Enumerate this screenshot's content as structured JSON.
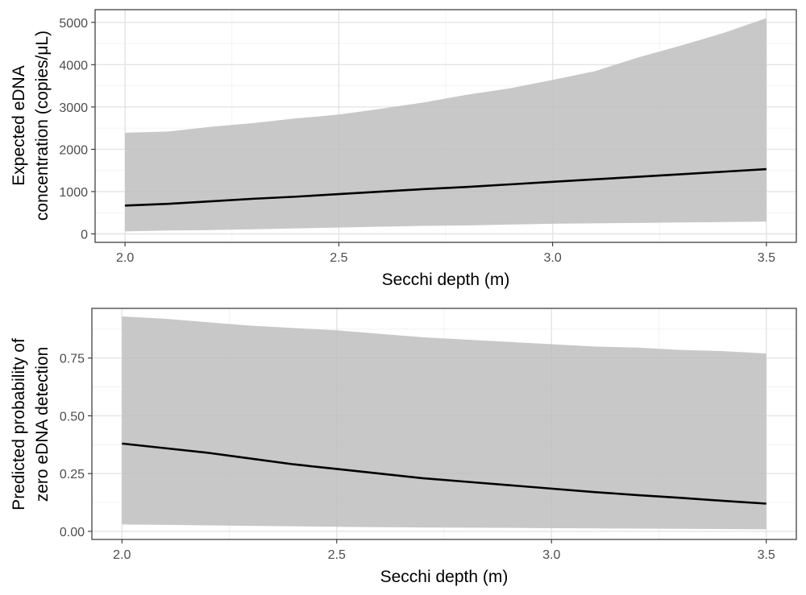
{
  "colors": {
    "ribbon": "#bebebe",
    "line": "#000000",
    "background": "#ffffff"
  },
  "chart_data": [
    {
      "type": "line",
      "panel": "top",
      "xlabel": "Secchi depth (m)",
      "ylabel_lines": [
        "Expected eDNA",
        "concentration (copies/μL)"
      ],
      "xlim": [
        1.93,
        3.57
      ],
      "ylim": [
        -200,
        5300
      ],
      "x_ticks": [
        2.0,
        2.5,
        3.0,
        3.5
      ],
      "x_tick_labels": [
        "2.0",
        "2.5",
        "3.0",
        "3.5"
      ],
      "y_ticks": [
        0,
        1000,
        2000,
        3000,
        4000,
        5000
      ],
      "y_tick_labels": [
        "0",
        "1000",
        "2000",
        "3000",
        "4000",
        "5000"
      ],
      "grid": true,
      "series": [
        {
          "x": [
            2.0,
            2.1,
            2.2,
            2.3,
            2.4,
            2.5,
            2.6,
            2.7,
            2.8,
            2.9,
            3.0,
            3.1,
            3.2,
            3.3,
            3.4,
            3.5
          ],
          "y": [
            670,
            710,
            770,
            830,
            880,
            940,
            1000,
            1060,
            1110,
            1170,
            1230,
            1290,
            1350,
            1410,
            1470,
            1530
          ],
          "lower": [
            60,
            80,
            90,
            110,
            130,
            150,
            170,
            190,
            200,
            220,
            240,
            250,
            260,
            270,
            280,
            290
          ],
          "upper": [
            2390,
            2420,
            2530,
            2620,
            2730,
            2820,
            2960,
            3110,
            3290,
            3440,
            3640,
            3850,
            4170,
            4450,
            4750,
            5100
          ]
        }
      ]
    },
    {
      "type": "line",
      "panel": "bottom",
      "xlabel": "Secchi depth (m)",
      "ylabel_lines": [
        "Predicted probability of",
        "zero eDNA detection"
      ],
      "xlim": [
        1.93,
        3.57
      ],
      "ylim": [
        -0.035,
        0.965
      ],
      "x_ticks": [
        2.0,
        2.5,
        3.0,
        3.5
      ],
      "x_tick_labels": [
        "2.0",
        "2.5",
        "3.0",
        "3.5"
      ],
      "y_ticks": [
        0.0,
        0.25,
        0.5,
        0.75
      ],
      "y_tick_labels": [
        "0.00",
        "0.25",
        "0.50",
        "0.75"
      ],
      "grid": true,
      "series": [
        {
          "x": [
            2.0,
            2.1,
            2.2,
            2.3,
            2.4,
            2.5,
            2.6,
            2.7,
            2.8,
            2.9,
            3.0,
            3.1,
            3.2,
            3.3,
            3.4,
            3.5
          ],
          "y": [
            0.38,
            0.36,
            0.34,
            0.315,
            0.29,
            0.27,
            0.25,
            0.23,
            0.215,
            0.2,
            0.185,
            0.17,
            0.157,
            0.145,
            0.132,
            0.12
          ],
          "lower": [
            0.03,
            0.028,
            0.026,
            0.024,
            0.022,
            0.02,
            0.018,
            0.017,
            0.016,
            0.015,
            0.014,
            0.013,
            0.012,
            0.011,
            0.01,
            0.009
          ],
          "upper": [
            0.93,
            0.92,
            0.905,
            0.89,
            0.88,
            0.87,
            0.855,
            0.84,
            0.83,
            0.82,
            0.81,
            0.8,
            0.795,
            0.785,
            0.78,
            0.77
          ]
        }
      ]
    }
  ]
}
